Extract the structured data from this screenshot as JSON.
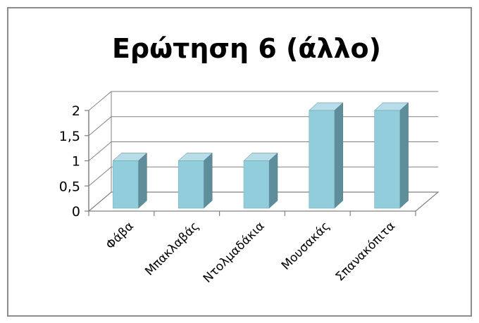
{
  "chart_data": {
    "type": "bar",
    "title": "Ερώτηση 6 (άλλο)",
    "categories": [
      "Φάβα",
      "Μπακλαβάς",
      "Ντολμαδάκια",
      "Μουσακάς",
      "Σπανακόπιτα"
    ],
    "values": [
      1,
      1,
      1,
      2,
      2
    ],
    "ylim": [
      0,
      2
    ],
    "yticks": [
      "0",
      "0,5",
      "1",
      "1,5",
      "2"
    ],
    "grid": true,
    "legend": "none",
    "style": "3d-column",
    "colors": {
      "bar_front": "#92cddc",
      "bar_side": "#5e8e99",
      "bar_top": "#b7dee8",
      "grid": "#808080",
      "border": "#8c8c8c"
    }
  }
}
